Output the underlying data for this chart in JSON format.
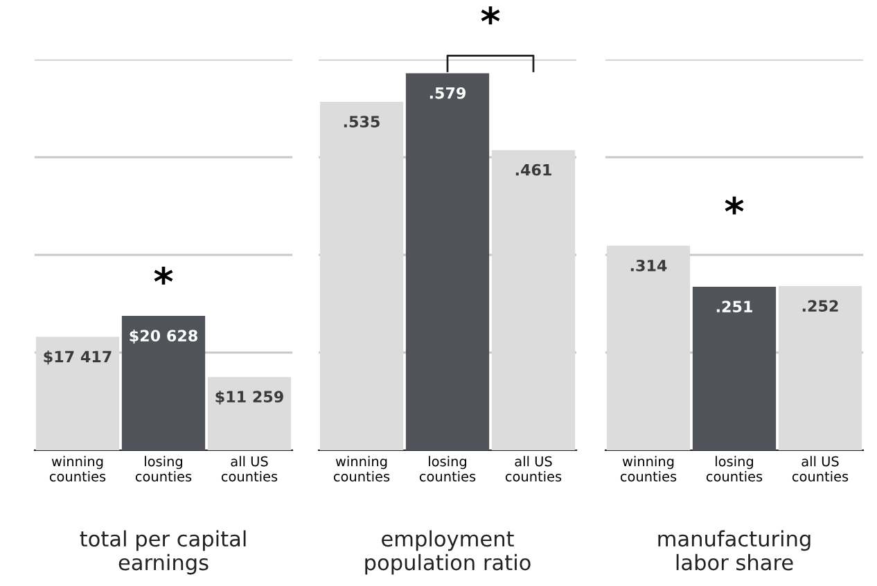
{
  "chart_data": [
    {
      "type": "bar",
      "xlabel": "total per capital\nearnings",
      "categories": [
        "winning\ncounties",
        "losing\ncounties",
        "all US\ncounties"
      ],
      "values": [
        17417,
        20628,
        11259
      ],
      "colors": [
        "#dcdcdc",
        "#50545a",
        "#dcdcdc"
      ],
      "value_labels": [
        "$17 417",
        "$20 628",
        "$11 259"
      ],
      "ylim": [
        0,
        60000
      ],
      "yticks": [
        {
          "value": 15000,
          "label": null
        },
        {
          "value": 30000,
          "label": null
        },
        {
          "value": 45000,
          "label": null
        },
        {
          "value": 60000,
          "label": null
        }
      ],
      "grid": "y",
      "tick_labels": "x",
      "annotations": [
        "*"
      ]
    },
    {
      "type": "bar",
      "xlabel": "employment\npopulation ratio",
      "categories": [
        "winning\ncounties",
        "losing\ncounties",
        "all US\ncounties"
      ],
      "values": [
        0.535,
        0.579,
        0.461
      ],
      "colors": [
        "#dcdcdc",
        "#50545a",
        "#dcdcdc"
      ],
      "value_labels": [
        ".535",
        ".579",
        ".461"
      ],
      "ylim": [
        0,
        0.6
      ],
      "yticks": [
        {
          "value": 0.15,
          "label": null
        },
        {
          "value": 0.3,
          "label": null
        },
        {
          "value": 0.45,
          "label": null
        },
        {
          "value": 0.6,
          "label": null
        }
      ],
      "grid": "y",
      "tick_labels": "x",
      "annotations": [
        "*"
      ]
    },
    {
      "type": "bar",
      "xlabel": "manufacturing\nlabor share",
      "categories": [
        "winning\ncounties",
        "losing\ncounties",
        "all US\ncounties"
      ],
      "values": [
        0.314,
        0.251,
        0.252
      ],
      "colors": [
        "#dcdcdc",
        "#50545a",
        "#dcdcdc"
      ],
      "value_labels": [
        ".314",
        ".251",
        ".252"
      ],
      "ylim": [
        0,
        0.6
      ],
      "yticks": [
        {
          "value": 0.15,
          "label": null
        },
        {
          "value": 0.3,
          "label": null
        },
        {
          "value": 0.45,
          "label": null
        },
        {
          "value": 0.6,
          "label": null
        }
      ],
      "grid": "y",
      "tick_labels": "x",
      "annotations": [
        "*"
      ]
    }
  ]
}
